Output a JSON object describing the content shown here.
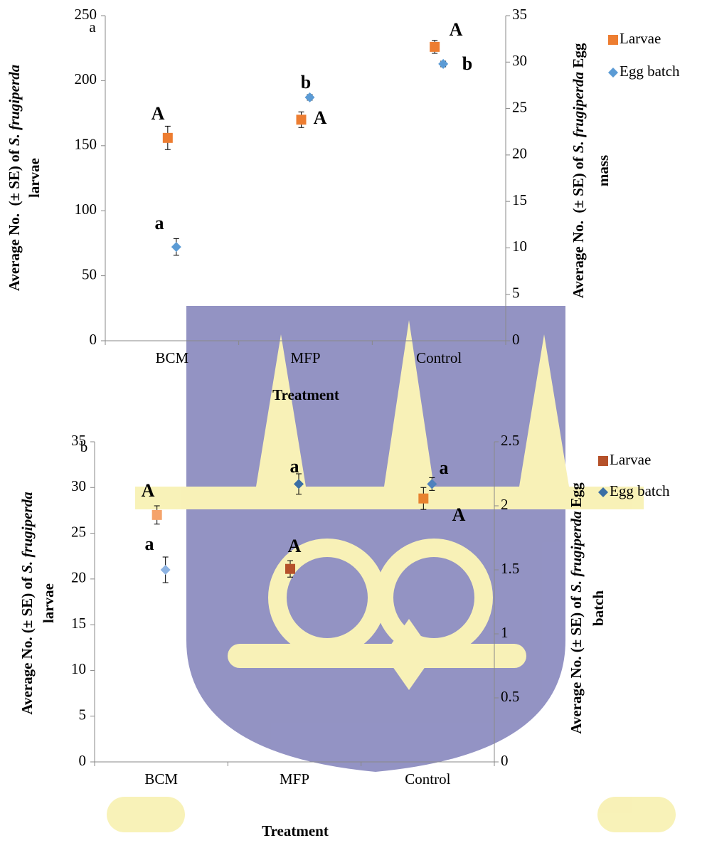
{
  "chart_data": [
    {
      "type": "scatter",
      "panel_label": "a",
      "categories": [
        "BCM",
        "MFP",
        "Control"
      ],
      "xlabel": "Treatment",
      "ylabel": {
        "prefix": "Average No.  (± SE) of ",
        "species": "S. frugiperda",
        "line2": "larvae"
      },
      "y2label": {
        "prefix": "Average No.  (± SE) of ",
        "species": "S. frugiperda",
        "suffix": " Egg",
        "line2": "mass"
      },
      "ylim": [
        0,
        250
      ],
      "yticks": [
        0,
        50,
        100,
        150,
        200,
        250
      ],
      "y2lim": [
        0,
        35
      ],
      "y2ticks": [
        0,
        5,
        10,
        15,
        20,
        25,
        30,
        35
      ],
      "series": [
        {
          "name": "Larvae",
          "color": "#ed7d31",
          "marker": "square",
          "values": [
            156,
            170,
            226
          ],
          "errors": [
            9,
            6,
            5
          ],
          "letters": [
            "A",
            "A",
            "A"
          ]
        },
        {
          "name": "Egg batch",
          "color": "#5b9bd5",
          "marker": "diamond",
          "axis": "y2",
          "values": [
            10.1,
            26.2,
            29.8
          ],
          "errors": [
            0.9,
            0.3,
            0.3
          ],
          "letters": [
            "a",
            "b",
            "b"
          ]
        }
      ]
    },
    {
      "type": "scatter",
      "panel_label": "b",
      "categories": [
        "BCM",
        "MFP",
        "Control"
      ],
      "xlabel": "Treatment",
      "ylabel": {
        "prefix": "Average No. (± SE) of ",
        "species": "S. frugiperda",
        "line2": "larvae"
      },
      "y2label": {
        "prefix": "Average No. (± SE) of ",
        "species": "S. frugiperda",
        "suffix": " Egg",
        "line2": "batch"
      },
      "ylim": [
        0,
        35
      ],
      "yticks": [
        0,
        5,
        10,
        15,
        20,
        25,
        30,
        35
      ],
      "y2lim": [
        0,
        2.5
      ],
      "y2ticks": [
        0,
        0.5,
        1,
        1.5,
        2,
        2.5
      ],
      "series": [
        {
          "name": "Larvae",
          "color": "#b5512a",
          "colors": [
            "#f5a36b",
            "#b5512a",
            "#e8832f"
          ],
          "marker": "square",
          "values": [
            27,
            21.1,
            28.8
          ],
          "errors": [
            1,
            0.9,
            1.2
          ],
          "letters": [
            "A",
            "A",
            "A"
          ]
        },
        {
          "name": "Egg batch",
          "color": "#3a6ea5",
          "colors": [
            "#8db3e2",
            "#3a6ea5",
            "#4f81bd"
          ],
          "marker": "diamond",
          "axis": "y2",
          "values": [
            1.5,
            2.17,
            2.17
          ],
          "errors": [
            0.1,
            0.08,
            0.05
          ],
          "letters": [
            "a",
            "a",
            "a"
          ]
        }
      ]
    }
  ]
}
